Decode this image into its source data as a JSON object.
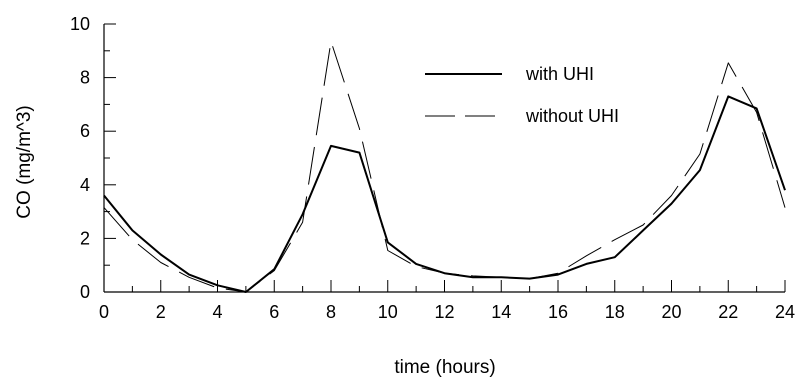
{
  "chart_data": {
    "type": "line",
    "title": "",
    "xlabel": "time (hours)",
    "ylabel": "CO (mg/m^3)",
    "xlim": [
      0,
      24
    ],
    "ylim": [
      0,
      10
    ],
    "x_major_ticks": [
      0,
      2,
      4,
      6,
      8,
      10,
      12,
      14,
      16,
      18,
      20,
      22,
      24
    ],
    "x_minor_step": 1,
    "y_major_ticks": [
      0,
      2,
      4,
      6,
      8,
      10
    ],
    "y_minor_step": 1,
    "grid": false,
    "legend_position": "top-right",
    "x": [
      0,
      1,
      2,
      3,
      4,
      5,
      6,
      7,
      8,
      9,
      10,
      11,
      12,
      13,
      14,
      15,
      16,
      17,
      18,
      19,
      20,
      21,
      22,
      23,
      24
    ],
    "series": [
      {
        "name": "with UHI",
        "style": "solid",
        "color": "#000000",
        "values": [
          3.6,
          2.3,
          1.4,
          0.65,
          0.25,
          0.0,
          0.85,
          2.9,
          5.45,
          5.2,
          1.85,
          1.05,
          0.7,
          0.55,
          0.55,
          0.5,
          0.65,
          1.05,
          1.3,
          2.3,
          3.3,
          4.55,
          7.3,
          6.85,
          3.8
        ]
      },
      {
        "name": "without UHI",
        "style": "dashed",
        "color": "#000000",
        "values": [
          3.15,
          1.95,
          1.1,
          0.55,
          0.15,
          0.0,
          0.8,
          2.6,
          9.35,
          6.1,
          1.55,
          0.95,
          0.7,
          0.6,
          0.55,
          0.5,
          0.7,
          1.35,
          1.95,
          2.5,
          3.6,
          5.15,
          8.55,
          6.7,
          3.15
        ]
      }
    ]
  }
}
